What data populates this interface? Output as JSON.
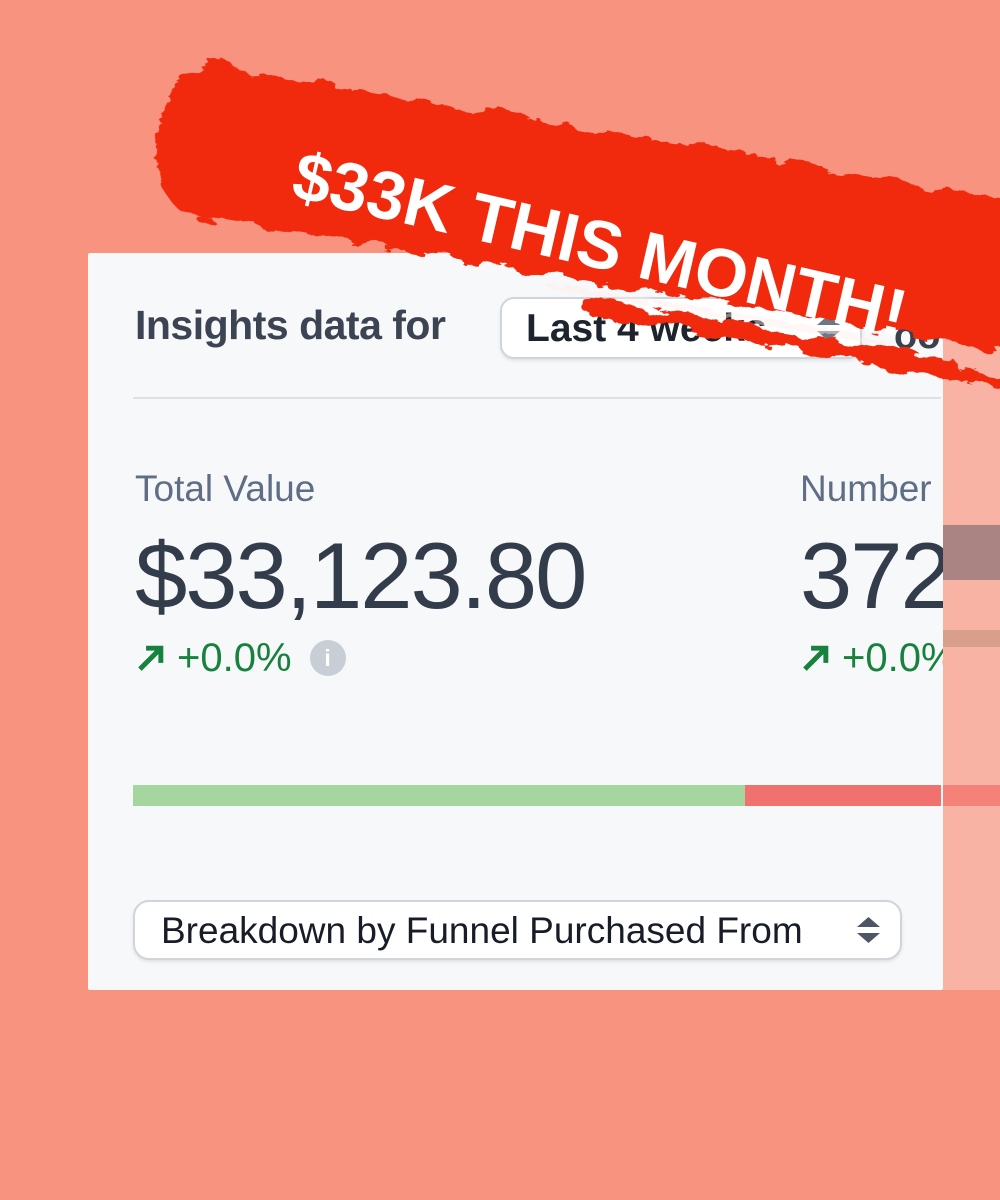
{
  "banner": {
    "text": "$33K THIS MONTH!",
    "brush_color": "#F12B10",
    "text_color": "#FFFFFF"
  },
  "card": {
    "title": "Insights data for",
    "range_selector": {
      "value": "Last 4 weeks"
    },
    "header_fragment": "oo",
    "stats": [
      {
        "label": "Total Value",
        "value": "$33,123.80",
        "change": "+0.0%"
      },
      {
        "label": "Number",
        "value": "372",
        "change": "+0.0%"
      }
    ],
    "info_icon_glyph": "i",
    "breakdown_selector": {
      "value": "Breakdown by Funnel Purchased From"
    }
  },
  "chart_data": {
    "type": "bar",
    "description": "horizontal split bar under the stats showing share of positive (green) vs negative (red)",
    "segments": [
      {
        "name": "green-share",
        "pct": 75.7,
        "color": "#A5D6A0"
      },
      {
        "name": "red-share",
        "pct": 24.3,
        "color": "#F0716D"
      }
    ]
  },
  "colors": {
    "background": "#F7937F",
    "card_background": "#F7F8F9",
    "brush_red": "#F12B10",
    "positive_green": "#17813D",
    "value_text": "#333C4B"
  }
}
